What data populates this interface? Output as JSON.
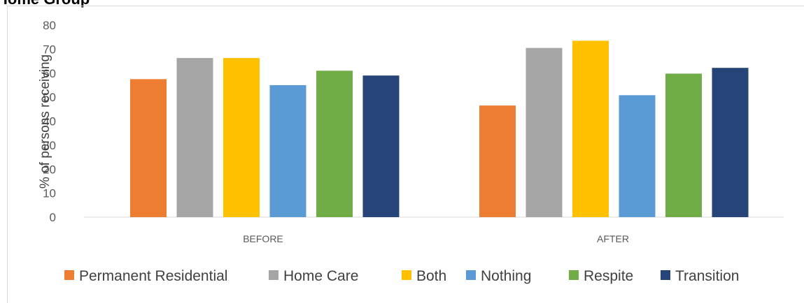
{
  "title": "Home Group",
  "chart_data": {
    "type": "bar",
    "title": "",
    "xlabel": "",
    "ylabel": "% of persons receiving",
    "ylim": [
      0,
      80
    ],
    "yticks": [
      "0",
      "10",
      "20",
      "30",
      "40",
      "50",
      "60",
      "70",
      "80"
    ],
    "grid": false,
    "legend_position": "bottom",
    "categories": [
      "BEFORE",
      "AFTER"
    ],
    "series": [
      {
        "name": "Permanent Residential",
        "color": "#ED7D31",
        "values": [
          57.5,
          46.5
        ]
      },
      {
        "name": "Home Care",
        "color": "#A5A5A5",
        "values": [
          66.3,
          70.5
        ]
      },
      {
        "name": "Both",
        "color": "#FFC000",
        "values": [
          66.3,
          73.5
        ]
      },
      {
        "name": "Nothing",
        "color": "#5B9BD5",
        "values": [
          55.0,
          50.8
        ]
      },
      {
        "name": "Respite",
        "color": "#70AD47",
        "values": [
          61.0,
          59.8
        ]
      },
      {
        "name": "Transition",
        "color": "#264478",
        "values": [
          59.0,
          62.2
        ]
      }
    ]
  }
}
